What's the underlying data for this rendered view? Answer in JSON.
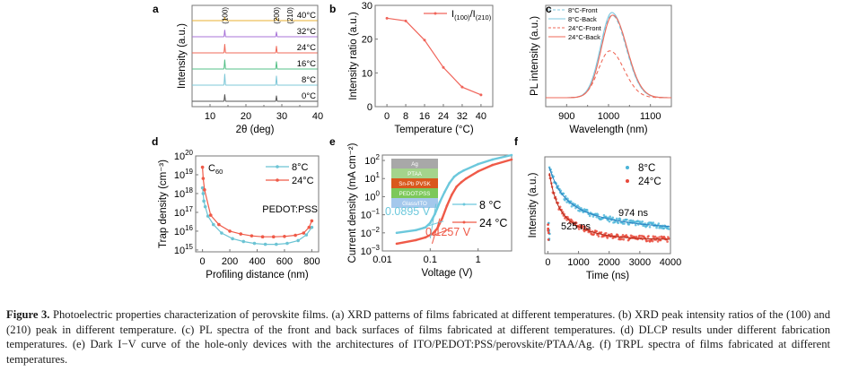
{
  "figure": {
    "caption_label": "Figure 3.",
    "caption_text": " Photoelectric properties characterization of perovskite films. (a) XRD patterns of films fabricated at different temperatures. (b) XRD peak intensity ratios of the (100) and (210) peak in different temperature. (c) PL spectra of the front and back surfaces of films fabricated at different temperatures. (d) DLCP results under different fabrication temperatures. (e) Dark I−V curve of the hole-only devices with the architectures of ITO/PEDOT:PSS/perovskite/PTAA/Ag. (f) TRPL spectra of films fabricated at different temperatures."
  },
  "chart_data": [
    {
      "panel": "a",
      "type": "line",
      "title": "",
      "xlabel": "2θ (deg)",
      "ylabel": "Intensity (a.u.)",
      "xlim": [
        5,
        40
      ],
      "xticks": [
        10,
        20,
        30,
        40
      ],
      "peak_labels": [
        {
          "text": "(100)",
          "x": 14.1
        },
        {
          "text": "(200)",
          "x": 28.5
        },
        {
          "text": "(210)",
          "x": 31.8
        }
      ],
      "series": [
        {
          "name": "0°C",
          "color": "#555555",
          "peaks": [
            {
              "x": 14.1,
              "h": 0.55
            },
            {
              "x": 28.5,
              "h": 0.45
            }
          ]
        },
        {
          "name": "8°C",
          "color": "#7fc8d8",
          "peaks": [
            {
              "x": 14.1,
              "h": 0.9
            },
            {
              "x": 28.5,
              "h": 0.75
            }
          ]
        },
        {
          "name": "16°C",
          "color": "#55c088",
          "peaks": [
            {
              "x": 14.1,
              "h": 0.75
            },
            {
              "x": 28.5,
              "h": 0.6
            }
          ]
        },
        {
          "name": "24°C",
          "color": "#ef6a5a",
          "peaks": [
            {
              "x": 14.1,
              "h": 0.7
            },
            {
              "x": 28.5,
              "h": 0.55
            }
          ]
        },
        {
          "name": "32°C",
          "color": "#a874d8",
          "peaks": [
            {
              "x": 14.1,
              "h": 0.55
            },
            {
              "x": 28.5,
              "h": 0.4
            }
          ]
        },
        {
          "name": "40°C",
          "color": "#e8b030",
          "peaks": [
            {
              "x": 14.1,
              "h": 0.3
            },
            {
              "x": 28.5,
              "h": 0.25
            }
          ]
        }
      ]
    },
    {
      "panel": "b",
      "type": "line",
      "title": "",
      "xlabel": "Temperature (°C)",
      "ylabel": "Intensity ratio (a.u.)",
      "categories": [
        "0",
        "8",
        "16",
        "24",
        "32",
        "40"
      ],
      "x": [
        0,
        8,
        16,
        24,
        32,
        40
      ],
      "series": [
        {
          "name": "I(100)/I(210)",
          "legend_main": "I",
          "legend_sub1": "(100)",
          "legend_slash": "/I",
          "legend_sub2": "(210)",
          "color": "#f0645a",
          "values": [
            26.2,
            25.4,
            19.7,
            11.6,
            5.8,
            3.5
          ]
        }
      ],
      "ylim": [
        0,
        30
      ],
      "yticks": [
        0,
        10,
        20,
        30
      ],
      "legend": "top-right"
    },
    {
      "panel": "c",
      "type": "line",
      "title": "",
      "xlabel": "Wavelength (nm)",
      "ylabel": "PL intensity (a.u.)",
      "xlim": [
        850,
        1150
      ],
      "xticks": [
        900,
        1000,
        1100
      ],
      "series": [
        {
          "name": "8°C-Front",
          "color": "#7fc8e0",
          "dash": true,
          "peak_nm": 1008,
          "peak_rel": 0.97
        },
        {
          "name": "8°C-Back",
          "color": "#7fc8e0",
          "dash": false,
          "peak_nm": 1008,
          "peak_rel": 1.0
        },
        {
          "name": "24°C-Front",
          "color": "#ef6a5a",
          "dash": true,
          "peak_nm": 1003,
          "peak_rel": 0.55
        },
        {
          "name": "24°C-Back",
          "color": "#ef6a5a",
          "dash": false,
          "peak_nm": 1010,
          "peak_rel": 0.97
        }
      ],
      "legend": "top-left"
    },
    {
      "panel": "d",
      "type": "line",
      "title": "",
      "xlabel": "Profiling distance (nm)",
      "ylabel": "Trap density (cm⁻³)",
      "xlim": [
        -50,
        850
      ],
      "xticks": [
        0,
        200,
        400,
        600,
        800
      ],
      "yscale": "log",
      "ylim_exp": [
        15,
        20
      ],
      "ytick_base": "10",
      "yticks_exp": [
        "15",
        "16",
        "17",
        "18",
        "19",
        "20"
      ],
      "annotations": [
        {
          "text": "C",
          "sub": "60"
        },
        {
          "text": "PEDOT:PSS"
        }
      ],
      "series": [
        {
          "name": "8°C",
          "color": "#6cc4d4",
          "x": [
            0,
            5,
            10,
            20,
            40,
            80,
            140,
            220,
            300,
            380,
            460,
            540,
            620,
            700,
            760,
            800
          ],
          "log_values": [
            18.3,
            18.0,
            17.6,
            17.3,
            16.8,
            16.35,
            15.9,
            15.6,
            15.45,
            15.35,
            15.3,
            15.3,
            15.35,
            15.5,
            15.8,
            16.2
          ]
        },
        {
          "name": "24°C",
          "color": "#ef5a48",
          "x": [
            0,
            5,
            15,
            60,
            120,
            200,
            280,
            360,
            440,
            520,
            600,
            680,
            740,
            780,
            800
          ],
          "log_values": [
            19.4,
            18.8,
            18.2,
            16.85,
            16.35,
            16.0,
            15.85,
            15.75,
            15.7,
            15.7,
            15.72,
            15.78,
            15.9,
            16.2,
            16.55
          ]
        }
      ],
      "legend": "top-right"
    },
    {
      "panel": "e",
      "type": "line",
      "title": "",
      "xlabel": "Voltage (V)",
      "ylabel": "Current density (mA cm⁻²)",
      "xscale": "log",
      "yscale": "log",
      "xticks": [
        "0.01",
        "0.1",
        "1"
      ],
      "xlim_log": [
        -2,
        0.7
      ],
      "ylim_exp": [
        -3,
        2.3
      ],
      "yticks_exp": [
        "-3",
        "-2",
        "-1",
        "0",
        "1",
        "2"
      ],
      "annotations": [
        {
          "text": "0.0895 V",
          "color": "#6cc8dc"
        },
        {
          "text": "0.1257 V",
          "color": "#ef5a48"
        }
      ],
      "inset_layers": [
        {
          "name": "Ag",
          "color": "#a8a8a8"
        },
        {
          "name": "PTAA",
          "color": "#a4d48c"
        },
        {
          "name": "Sn-Pb PVSK",
          "color": "#d9581c"
        },
        {
          "name": "PEDOT:PSS",
          "color": "#7cc85a"
        },
        {
          "name": "Glass/ITO",
          "color": "#a4c8ec"
        }
      ],
      "series": [
        {
          "name": "8 °C",
          "color": "#6cc8dc",
          "logV": [
            -1.7,
            -1.3,
            -1.1,
            -1.0,
            -0.9,
            -0.8,
            -0.7,
            -0.6,
            -0.5,
            -0.4,
            -0.3,
            0,
            0.3,
            0.7
          ],
          "logJ": [
            -2.0,
            -1.85,
            -1.7,
            -1.45,
            -0.95,
            -0.3,
            0.25,
            0.75,
            1.1,
            1.3,
            1.45,
            1.8,
            2.05,
            2.3
          ]
        },
        {
          "name": "24 °C",
          "color": "#ef5a48",
          "logV": [
            -1.7,
            -1.3,
            -1.1,
            -0.95,
            -0.85,
            -0.75,
            -0.65,
            -0.55,
            -0.45,
            -0.35,
            -0.25,
            0,
            0.3,
            0.7
          ],
          "logJ": [
            -2.6,
            -2.4,
            -2.25,
            -2.05,
            -1.75,
            -1.2,
            -0.5,
            0.1,
            0.55,
            0.8,
            1.0,
            1.4,
            1.75,
            2.05
          ]
        }
      ],
      "legend": "right"
    },
    {
      "panel": "f",
      "type": "scatter",
      "title": "",
      "xlabel": "Time (ns)",
      "ylabel": "Intensity (a.u.)",
      "xlim": [
        -100,
        4000
      ],
      "xticks": [
        0,
        1000,
        2000,
        3000,
        4000
      ],
      "annotations": [
        {
          "text": "974 ns",
          "color": "#222222"
        },
        {
          "text": "525 ns",
          "color": "#222222"
        }
      ],
      "series": [
        {
          "name": "8°C",
          "color": "#4ab4d8",
          "fit_color": "#2a7ec0",
          "lifetime_ns": 974
        },
        {
          "name": "24°C",
          "color": "#e8483a",
          "fit_color": "#b02818",
          "lifetime_ns": 525
        }
      ],
      "legend": "top-right"
    }
  ],
  "panel_labels": [
    "a",
    "b",
    "c",
    "d",
    "e",
    "f"
  ]
}
